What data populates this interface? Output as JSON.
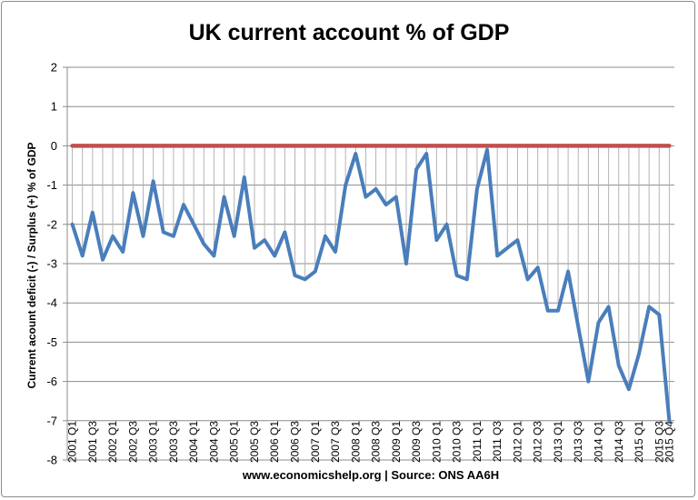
{
  "chart_data": {
    "type": "line",
    "title": "UK current account % of GDP",
    "xlabel": "www.economicshelp.org | Source: ONS AA6H",
    "ylabel": "Current acount deficit (-) / Surplus (+) % of GDP",
    "ylim": [
      -8,
      2
    ],
    "yticks": [
      2,
      1,
      0,
      -1,
      -2,
      -3,
      -4,
      -5,
      -6,
      -7,
      -8
    ],
    "grid": true,
    "x_tick_labels": [
      "2001 Q1",
      "2001 Q3",
      "2002 Q1",
      "2002 Q3",
      "2003 Q1",
      "2003 Q3",
      "2004 Q1",
      "2004 Q3",
      "2005 Q1",
      "2005 Q3",
      "2006 Q1",
      "2006 Q3",
      "2007 Q1",
      "2007 Q3",
      "2008 Q1",
      "2008 Q3",
      "2009 Q1",
      "2009 Q3",
      "2010 Q1",
      "2010 Q3",
      "2011 Q1",
      "2011 Q3",
      "2012 Q1",
      "2012 Q3",
      "2013 Q1",
      "2013 Q3",
      "2014 Q1",
      "2014 Q3",
      "2015 Q1",
      "2015 Q3",
      "2015 Q4"
    ],
    "series": [
      {
        "color": "#4a7ebb",
        "values": [
          -2.0,
          -2.8,
          -1.7,
          -2.9,
          -2.3,
          -2.7,
          -1.2,
          -2.3,
          -0.9,
          -2.2,
          -2.3,
          -1.5,
          -2.0,
          -2.5,
          -2.8,
          -1.3,
          -2.3,
          -0.8,
          -2.6,
          -2.4,
          -2.8,
          -2.2,
          -3.3,
          -3.4,
          -3.2,
          -2.3,
          -2.7,
          -1.0,
          -0.2,
          -1.3,
          -1.1,
          -1.5,
          -1.3,
          -3.0,
          -0.6,
          -0.2,
          -2.4,
          -2.0,
          -3.3,
          -3.4,
          -1.1,
          -0.1,
          -2.8,
          -2.6,
          -2.4,
          -3.4,
          -3.1,
          -4.2,
          -4.2,
          -3.2,
          -4.6,
          -6.0,
          -4.5,
          -4.1,
          -5.6,
          -6.2,
          -5.3,
          -4.1,
          -4.3,
          -7.0
        ]
      },
      {
        "color": "#c0504d",
        "values": [
          0,
          0,
          0,
          0,
          0,
          0,
          0,
          0,
          0,
          0,
          0,
          0,
          0,
          0,
          0,
          0,
          0,
          0,
          0,
          0,
          0,
          0,
          0,
          0,
          0,
          0,
          0,
          0,
          0,
          0,
          0,
          0,
          0,
          0,
          0,
          0,
          0,
          0,
          0,
          0,
          0,
          0,
          0,
          0,
          0,
          0,
          0,
          0,
          0,
          0,
          0,
          0,
          0,
          0,
          0,
          0,
          0,
          0,
          0,
          0
        ]
      }
    ]
  }
}
